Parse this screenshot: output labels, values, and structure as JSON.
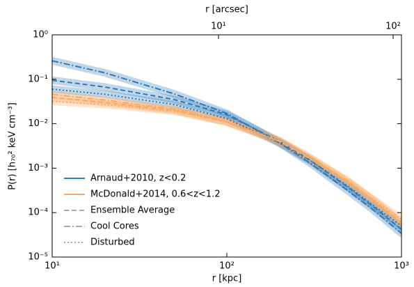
{
  "chart_data": {
    "type": "line",
    "xlabel": "r [kpc]",
    "x2label": "r [arcsec]",
    "ylabel": "P(r)  [h₇₀² keV cm⁻³]",
    "xscale": "log",
    "yscale": "log",
    "xlim": [
      10,
      1000
    ],
    "xticks": [
      {
        "value": 10,
        "label": "10¹"
      },
      {
        "value": 100,
        "label": "10²"
      },
      {
        "value": 1000,
        "label": "10³"
      }
    ],
    "x2lim": [
      1.116,
      111.6
    ],
    "x2ticks": [
      {
        "value": 10,
        "label": "10¹"
      },
      {
        "value": 100,
        "label": "10²"
      }
    ],
    "ylim": [
      1e-05,
      1
    ],
    "yticks": [
      {
        "value": 1e-05,
        "label": "10⁻⁵"
      },
      {
        "value": 0.0001,
        "label": "10⁻⁴"
      },
      {
        "value": 0.001,
        "label": "10⁻³"
      },
      {
        "value": 0.01,
        "label": "10⁻²"
      },
      {
        "value": 0.1,
        "label": "10⁻¹"
      },
      {
        "value": 1,
        "label": "10⁰"
      }
    ],
    "legend": "lower left",
    "x": [
      10,
      20,
      50,
      100,
      200,
      300,
      500,
      700,
      1000
    ],
    "line_styles": [
      {
        "name": "Ensemble Average",
        "dash": "7,4"
      },
      {
        "name": "Cool Cores",
        "dash": "9,3,2,3"
      },
      {
        "name": "Disturbed",
        "dash": "2,3"
      }
    ],
    "series": [
      {
        "name": "Arnaud+2010, z<0.2",
        "color": "#2e7ab8",
        "lines": [
          [
            0.095,
            0.067,
            0.035,
            0.016,
            0.004,
            0.0015,
            0.00036,
            0.00013,
            4.2e-05
          ],
          [
            0.26,
            0.14,
            0.047,
            0.017,
            0.0037,
            0.0013,
            0.0003,
            0.00011,
            3.4e-05
          ],
          [
            0.06,
            0.046,
            0.027,
            0.013,
            0.0037,
            0.0015,
            0.00038,
            0.00014,
            5e-05
          ]
        ]
      },
      {
        "name": "McDonald+2014, 0.6<z<1.2",
        "color": "#f9a863",
        "lines": [
          [
            0.039,
            0.03,
            0.02,
            0.011,
            0.004,
            0.0016,
            0.00048,
            0.00018,
            6e-05
          ],
          [
            0.046,
            0.034,
            0.021,
            0.011,
            0.004,
            0.0017,
            0.0005,
            0.00018,
            5.5e-05
          ],
          [
            0.032,
            0.027,
            0.019,
            0.011,
            0.0042,
            0.0017,
            0.00046,
            0.00019,
            7e-05
          ]
        ]
      }
    ]
  }
}
